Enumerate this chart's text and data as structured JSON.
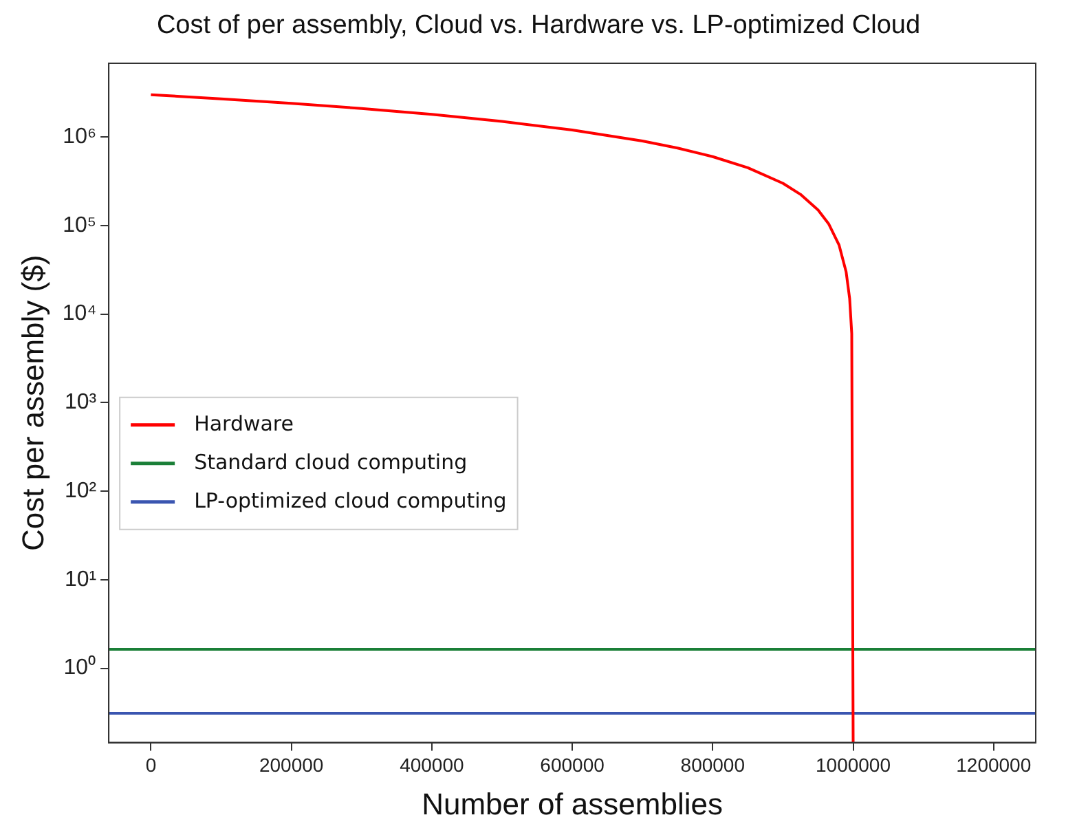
{
  "chart_data": {
    "type": "line",
    "title": "Cost of per assembly, Cloud vs. Hardware vs. LP-optimized Cloud",
    "xlabel": "Number of assemblies",
    "ylabel": "Cost per assembly ($)",
    "log": "y",
    "grid": false,
    "legend": "center left",
    "marker": "none",
    "line_style": "solid",
    "xlim": [
      -60000,
      1260000
    ],
    "xticks": [
      0,
      200000,
      400000,
      600000,
      800000,
      1000000,
      1200000
    ],
    "ylim": [
      0.145,
      6800000
    ],
    "yticks": [
      {
        "value": 1,
        "label": "10⁰"
      },
      {
        "value": 10,
        "label": "10¹"
      },
      {
        "value": 100,
        "label": "10²"
      },
      {
        "value": 1000,
        "label": "10³"
      },
      {
        "value": 10000,
        "label": "10⁴"
      },
      {
        "value": 100000,
        "label": "10⁵"
      },
      {
        "value": 1000000,
        "label": "10⁶"
      }
    ],
    "series": [
      {
        "name": "Hardware",
        "color": "#ff0000",
        "x": [
          0,
          100000,
          200000,
          300000,
          400000,
          500000,
          600000,
          700000,
          750000,
          800000,
          850000,
          900000,
          925000,
          950000,
          965000,
          980000,
          990000,
          995000,
          998000,
          1000000
        ],
        "values": [
          3000000,
          2700000,
          2400000,
          2100000,
          1800000,
          1500000,
          1200000,
          900000,
          750000,
          600000,
          450000,
          300000,
          225000,
          150000,
          105000,
          60000,
          30000,
          15000,
          6000,
          0.145
        ]
      },
      {
        "name": "Standard cloud computing",
        "color": "#1a7f37",
        "x": [
          -60000,
          1260000
        ],
        "values": [
          1.64,
          1.64
        ]
      },
      {
        "name": "LP-optimized cloud computing",
        "color": "#3a55b0",
        "x": [
          -60000,
          1260000
        ],
        "values": [
          0.31,
          0.31
        ]
      }
    ]
  }
}
